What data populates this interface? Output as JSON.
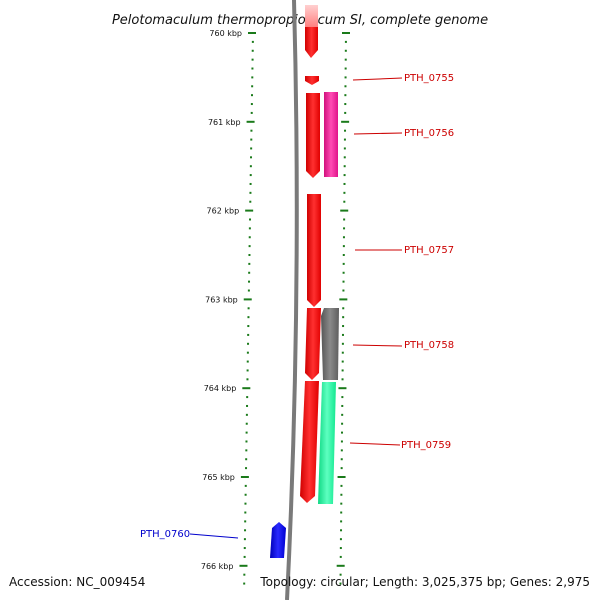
{
  "title": "Pelotomaculum thermopropionicum SI, complete genome",
  "accession": "Accession: NC_009454",
  "summary": "Topology: circular; Length: 3,025,375 bp; Genes: 2,975",
  "colors": {
    "backbone": "#7a7a7a",
    "ticks": "#1a7a1a",
    "label_red": "#cc0000",
    "label_blue": "#0000cc"
  },
  "ticks": [
    {
      "kbp": 760,
      "label": "760 kbp"
    },
    {
      "kbp": 761,
      "label": "761 kbp"
    },
    {
      "kbp": 762,
      "label": "762 kbp"
    },
    {
      "kbp": 763,
      "label": "763 kbp"
    },
    {
      "kbp": 764,
      "label": "764 kbp"
    },
    {
      "kbp": 765,
      "label": "765 kbp"
    },
    {
      "kbp": 766,
      "label": "766 kbp"
    }
  ],
  "genes": [
    {
      "label": "PTH_0755",
      "color": "#ff0000",
      "label_color": "#cc0000"
    },
    {
      "label": "PTH_0756",
      "color": "#ff1f9a",
      "label_color": "#cc0000"
    },
    {
      "label": "PTH_0757",
      "color": "#ff0000",
      "label_color": "#cc0000"
    },
    {
      "label": "PTH_0758",
      "color": "#6b6b6b",
      "label_color": "#cc0000"
    },
    {
      "label": "PTH_0759",
      "color": "#1af59a",
      "label_color": "#cc0000"
    },
    {
      "label": "PTH_0760",
      "color": "#0000ee",
      "label_color": "#0000cc"
    }
  ]
}
